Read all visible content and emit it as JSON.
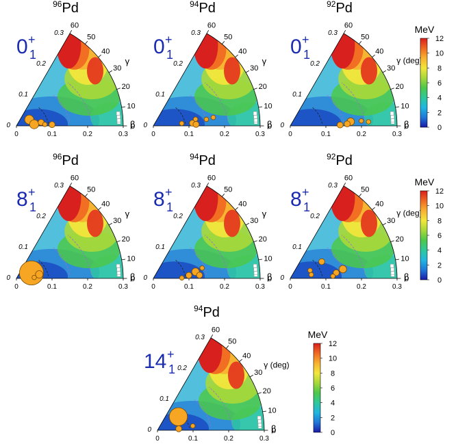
{
  "colorbar": {
    "unit": "MeV",
    "ticks": [
      "0",
      "2",
      "4",
      "6",
      "8",
      "10",
      "12"
    ],
    "range": [
      0,
      12
    ],
    "stops": [
      "#1a1aa8",
      "#1f78d8",
      "#21b6e0",
      "#2ec89a",
      "#4cc84a",
      "#a8d83a",
      "#f2e63c",
      "#f7b230",
      "#f06a22",
      "#d8201e"
    ]
  },
  "axes": {
    "beta_label": "β",
    "gamma_label": "γ",
    "gamma_unit_label": "γ (deg)",
    "beta_ticks": [
      "0",
      "0.1",
      "0.2",
      "0.3"
    ],
    "gamma_ticks": [
      "0",
      "10",
      "20",
      "30",
      "40",
      "50",
      "60"
    ],
    "radial_ticks": [
      "0",
      "0.1",
      "0.2",
      "0.3"
    ]
  },
  "chart_data": [
    {
      "type": "heatmap",
      "title": "96Pd",
      "mass": "96",
      "element": "Pd",
      "state": {
        "j": "0",
        "sup": "+",
        "sub": "1"
      },
      "xlim": [
        0,
        0.3
      ],
      "gamma_range": [
        0,
        60
      ],
      "points": [
        {
          "beta": 0.04,
          "gamma": 26,
          "size": 3
        },
        {
          "beta": 0.05,
          "gamma": 5,
          "size": 3
        },
        {
          "beta": 0.07,
          "gamma": 8,
          "size": 2
        },
        {
          "beta": 0.08,
          "gamma": 3,
          "size": 1.5
        },
        {
          "beta": 0.1,
          "gamma": 2,
          "size": 2
        }
      ]
    },
    {
      "type": "heatmap",
      "title": "94Pd",
      "mass": "94",
      "element": "Pd",
      "state": {
        "j": "0",
        "sup": "+",
        "sub": "1"
      },
      "xlim": [
        0,
        0.3
      ],
      "gamma_range": [
        0,
        60
      ],
      "points": [
        {
          "beta": 0.08,
          "gamma": 5,
          "size": 1.5
        },
        {
          "beta": 0.11,
          "gamma": 4,
          "size": 2
        },
        {
          "beta": 0.12,
          "gamma": 2,
          "size": 2
        },
        {
          "beta": 0.15,
          "gamma": 7,
          "size": 1.5
        },
        {
          "beta": 0.17,
          "gamma": 8,
          "size": 1.5
        },
        {
          "beta": 0.12,
          "gamma": 9,
          "size": 1.5
        }
      ]
    },
    {
      "type": "heatmap",
      "title": "92Pd",
      "mass": "92",
      "element": "Pd",
      "state": {
        "j": "0",
        "sup": "+",
        "sub": "1"
      },
      "xlim": [
        0,
        0.3
      ],
      "gamma_range": [
        0,
        60
      ],
      "points": [
        {
          "beta": 0.14,
          "gamma": 1,
          "size": 2
        },
        {
          "beta": 0.17,
          "gamma": 4,
          "size": 2.5
        },
        {
          "beta": 0.16,
          "gamma": 2,
          "size": 2
        },
        {
          "beta": 0.2,
          "gamma": 4,
          "size": 1.5
        },
        {
          "beta": 0.22,
          "gamma": 3,
          "size": 1.5
        }
      ]
    },
    {
      "type": "heatmap",
      "title": "96Pd",
      "mass": "96",
      "element": "Pd",
      "state": {
        "j": "8",
        "sup": "+",
        "sub": "1"
      },
      "xlim": [
        0,
        0.3
      ],
      "gamma_range": [
        0,
        60
      ],
      "points": [
        {
          "beta": 0.045,
          "gamma": 20,
          "size": 8
        },
        {
          "beta": 0.065,
          "gamma": 10,
          "size": 2.5
        },
        {
          "beta": 0.05,
          "gamma": 3,
          "size": 1.5
        }
      ]
    },
    {
      "type": "heatmap",
      "title": "94Pd",
      "mass": "94",
      "element": "Pd",
      "state": {
        "j": "8",
        "sup": "+",
        "sub": "1"
      },
      "xlim": [
        0,
        0.3
      ],
      "gamma_range": [
        0,
        60
      ],
      "points": [
        {
          "beta": 0.08,
          "gamma": 1,
          "size": 1.5
        },
        {
          "beta": 0.1,
          "gamma": 5,
          "size": 2
        },
        {
          "beta": 0.12,
          "gamma": 9,
          "size": 2.5
        },
        {
          "beta": 0.13,
          "gamma": 4,
          "size": 2
        },
        {
          "beta": 0.14,
          "gamma": 12,
          "size": 1.5
        }
      ]
    },
    {
      "type": "heatmap",
      "title": "92Pd",
      "mass": "92",
      "element": "Pd",
      "state": {
        "j": "8",
        "sup": "+",
        "sub": "1"
      },
      "xlim": [
        0,
        0.3
      ],
      "gamma_range": [
        0,
        60
      ],
      "points": [
        {
          "beta": 0.1,
          "gamma": 28,
          "size": 2
        },
        {
          "beta": 0.06,
          "gamma": 22,
          "size": 1.5
        },
        {
          "beta": 0.06,
          "gamma": 10,
          "size": 1.5
        },
        {
          "beta": 0.15,
          "gamma": 10,
          "size": 2.5
        },
        {
          "beta": 0.13,
          "gamma": 7,
          "size": 2
        },
        {
          "beta": 0.12,
          "gamma": 3,
          "size": 1.5
        }
      ]
    },
    {
      "type": "heatmap",
      "title": "94Pd",
      "mass": "94",
      "element": "Pd",
      "state": {
        "j": "14",
        "sup": "+",
        "sub": "1"
      },
      "xlim": [
        0,
        0.3
      ],
      "gamma_range": [
        0,
        60
      ],
      "points": [
        {
          "beta": 0.07,
          "gamma": 33,
          "size": 6
        },
        {
          "beta": 0.06,
          "gamma": 4,
          "size": 2
        },
        {
          "beta": 0.1,
          "gamma": 7,
          "size": 1.5
        }
      ]
    }
  ]
}
